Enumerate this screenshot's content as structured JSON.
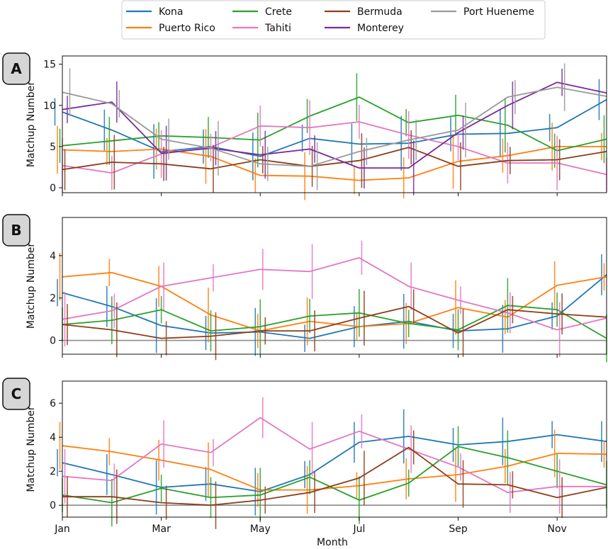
{
  "chart_data": {
    "type": "line",
    "xlabel": "Month",
    "ylabel": "Matchup Number",
    "x_tick_labels": [
      "Jan",
      "Mar",
      "May",
      "Jul",
      "Sep",
      "Nov"
    ],
    "x_tick_months": [
      1,
      3,
      5,
      7,
      9,
      11
    ],
    "x_months": [
      1,
      2,
      3,
      4,
      5,
      6,
      7,
      8,
      9,
      10,
      11,
      12
    ],
    "xlim": [
      1,
      12
    ],
    "series": [
      {
        "name": "Kona",
        "color": "#1f77b4"
      },
      {
        "name": "Puerto Rico",
        "color": "#ff7f0e"
      },
      {
        "name": "Crete",
        "color": "#2ca02c"
      },
      {
        "name": "Tahiti",
        "color": "#e377c2"
      },
      {
        "name": "Bermuda",
        "color": "#8c3e1b"
      },
      {
        "name": "Monterey",
        "color": "#7b2a9a"
      },
      {
        "name": "Port Hueneme",
        "color": "#999999"
      }
    ],
    "panels": [
      {
        "label": "A",
        "ylim": [
          -0.6,
          16.0
        ],
        "yticks": [
          0,
          5,
          10,
          15
        ],
        "zero_line": false,
        "values": {
          "Kona": [
            9.2,
            7.0,
            4.4,
            5.0,
            3.8,
            6.0,
            5.3,
            5.4,
            6.5,
            6.6,
            7.3,
            10.7
          ],
          "Puerto Rico": [
            4.6,
            4.4,
            4.7,
            3.8,
            1.5,
            1.4,
            0.9,
            1.2,
            3.2,
            3.9,
            5.0,
            5.0
          ],
          "Crete": [
            5.1,
            5.7,
            6.3,
            6.1,
            5.8,
            8.7,
            11.0,
            7.9,
            8.8,
            7.6,
            4.5,
            5.9
          ],
          "Tahiti": [
            2.7,
            1.8,
            4.1,
            4.9,
            7.5,
            7.3,
            8.0,
            6.4,
            5.0,
            3.0,
            3.0,
            1.6
          ],
          "Bermuda": [
            2.2,
            3.1,
            2.9,
            2.3,
            3.4,
            2.6,
            3.3,
            4.9,
            2.6,
            3.3,
            3.4,
            4.4
          ],
          "Monterey": [
            9.5,
            10.4,
            4.2,
            4.8,
            4.0,
            4.7,
            2.4,
            2.4,
            6.7,
            10.0,
            12.8,
            11.5
          ],
          "Port Hueneme": [
            11.6,
            10.2,
            5.9,
            4.8,
            2.9,
            2.6,
            4.4,
            5.8,
            7.0,
            11.0,
            12.2,
            11.1
          ]
        }
      },
      {
        "label": "B",
        "ylim": [
          -0.65,
          5.8
        ],
        "yticks": [
          0,
          2,
          4
        ],
        "zero_line": true,
        "values": {
          "Kona": [
            2.25,
            1.6,
            0.7,
            0.35,
            0.4,
            0.1,
            0.65,
            0.9,
            0.45,
            0.55,
            1.15,
            3.1
          ],
          "Puerto Rico": [
            3.0,
            3.2,
            2.55,
            1.2,
            0.45,
            0.9,
            0.65,
            0.8,
            1.55,
            1.1,
            2.6,
            3.0
          ],
          "Crete": [
            0.75,
            0.95,
            1.45,
            0.45,
            0.65,
            1.15,
            1.3,
            0.8,
            0.5,
            1.65,
            1.45,
            0.1
          ],
          "Tahiti": [
            1.0,
            1.4,
            2.55,
            2.95,
            3.35,
            3.25,
            3.9,
            2.55,
            1.9,
            1.3,
            0.5,
            1.05
          ],
          "Bermuda": [
            0.75,
            0.5,
            0.1,
            0.2,
            0.45,
            0.45,
            1.05,
            1.6,
            0.35,
            1.45,
            1.25,
            1.1
          ]
        }
      },
      {
        "label": "C",
        "ylim": [
          -0.7,
          7.3
        ],
        "yticks": [
          0,
          2,
          4,
          6
        ],
        "zero_line": true,
        "values": {
          "Kona": [
            2.5,
            1.8,
            1.05,
            1.25,
            0.8,
            1.8,
            3.7,
            4.05,
            3.55,
            3.75,
            4.15,
            3.75
          ],
          "Puerto Rico": [
            3.5,
            3.15,
            2.65,
            2.1,
            0.9,
            0.9,
            1.15,
            1.55,
            1.8,
            2.3,
            3.05,
            3.0
          ],
          "Crete": [
            0.6,
            0.15,
            1.0,
            0.45,
            0.6,
            1.65,
            0.3,
            1.3,
            3.45,
            2.8,
            2.0,
            1.2
          ],
          "Tahiti": [
            1.7,
            1.45,
            3.6,
            3.1,
            5.15,
            3.3,
            4.35,
            3.3,
            2.25,
            0.75,
            1.1,
            1.1
          ],
          "Bermuda": [
            0.5,
            0.5,
            0.15,
            0.0,
            0.3,
            0.75,
            1.6,
            3.4,
            1.25,
            1.2,
            0.45,
            1.05
          ]
        }
      }
    ]
  }
}
